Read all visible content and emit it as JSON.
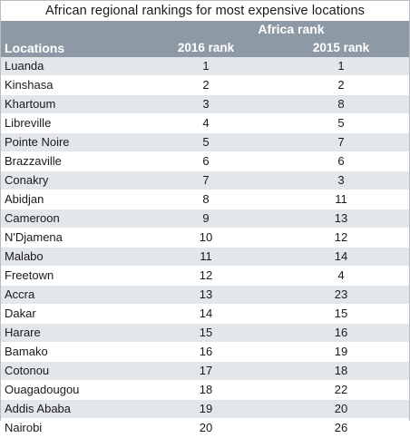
{
  "title": "African regional rankings for most expensive locations",
  "chart_data": {
    "type": "table",
    "title": "African regional rankings for most expensive locations",
    "group_header": "Africa rank",
    "columns": [
      "Locations",
      "2016 rank",
      "2015 rank"
    ],
    "rows": [
      {
        "location": "Luanda",
        "rank_2016": 1,
        "rank_2015": 1
      },
      {
        "location": "Kinshasa",
        "rank_2016": 2,
        "rank_2015": 2
      },
      {
        "location": "Khartoum",
        "rank_2016": 3,
        "rank_2015": 8
      },
      {
        "location": "Libreville",
        "rank_2016": 4,
        "rank_2015": 5
      },
      {
        "location": "Pointe Noire",
        "rank_2016": 5,
        "rank_2015": 7
      },
      {
        "location": "Brazzaville",
        "rank_2016": 6,
        "rank_2015": 6
      },
      {
        "location": "Conakry",
        "rank_2016": 7,
        "rank_2015": 3
      },
      {
        "location": "Abidjan",
        "rank_2016": 8,
        "rank_2015": 11
      },
      {
        "location": "Cameroon",
        "rank_2016": 9,
        "rank_2015": 13
      },
      {
        "location": "N'Djamena",
        "rank_2016": 10,
        "rank_2015": 12
      },
      {
        "location": "Malabo",
        "rank_2016": 11,
        "rank_2015": 14
      },
      {
        "location": "Freetown",
        "rank_2016": 12,
        "rank_2015": 4
      },
      {
        "location": "Accra",
        "rank_2016": 13,
        "rank_2015": 23
      },
      {
        "location": "Dakar",
        "rank_2016": 14,
        "rank_2015": 15
      },
      {
        "location": "Harare",
        "rank_2016": 15,
        "rank_2015": 16
      },
      {
        "location": "Bamako",
        "rank_2016": 16,
        "rank_2015": 19
      },
      {
        "location": "Cotonou",
        "rank_2016": 17,
        "rank_2015": 18
      },
      {
        "location": "Ouagadougou",
        "rank_2016": 18,
        "rank_2015": 22
      },
      {
        "location": "Addis Ababa",
        "rank_2016": 19,
        "rank_2015": 20
      },
      {
        "location": "Nairobi",
        "rank_2016": 20,
        "rank_2015": 26
      }
    ]
  },
  "colors": {
    "header_bg": "#8d9aa5",
    "row_stripe": "#e3e6ea",
    "row_plain": "#ffffff"
  }
}
